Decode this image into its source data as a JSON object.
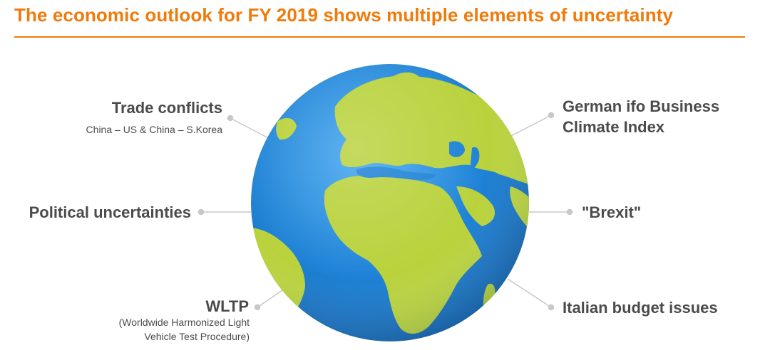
{
  "slide": {
    "title": "The economic outlook for FY 2019 shows multiple elements of uncertainty"
  },
  "colors": {
    "accent": "#F07A0A",
    "ocean": "#1E82D6",
    "land": "#B9D23C",
    "text": "#4B4B4B",
    "connector": "#C8C8C8"
  },
  "factors": {
    "trade": {
      "label": "Trade conflicts",
      "detail": "China – US & China – S.Korea"
    },
    "political": {
      "label": "Political uncertainties"
    },
    "wltp": {
      "label": "WLTP",
      "detail_line1": "(Worldwide Harmonized Light",
      "detail_line2": "Vehicle Test Procedure)"
    },
    "ifo": {
      "label_line1": "German ifo Business",
      "label_line2": "Climate Index"
    },
    "brexit": {
      "label": "\"Brexit\""
    },
    "italy": {
      "label": "Italian budget issues"
    }
  }
}
